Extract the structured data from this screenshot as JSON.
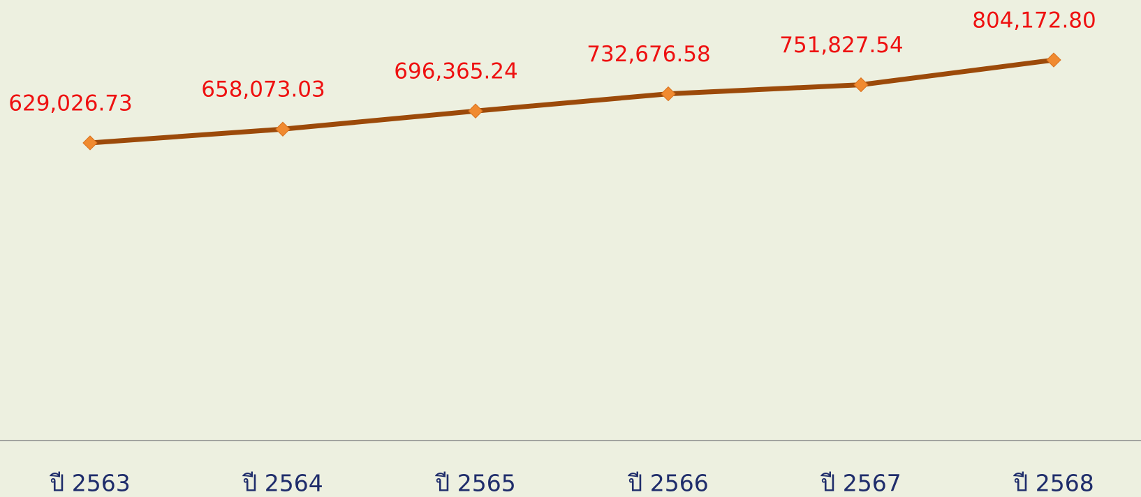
{
  "chart_data": {
    "type": "line",
    "categories": [
      "ปี 2563",
      "ปี 2564",
      "ปี 2565",
      "ปี 2566",
      "ปี 2567",
      "ปี 2568"
    ],
    "series": [
      {
        "color": "#9c4a0a",
        "marker_color": "#f08a30",
        "values": [
          629026.73,
          658073.03,
          696365.24,
          732676.58,
          751827.54,
          804172.8
        ],
        "value_labels": [
          "629,026.73",
          "658,073.03",
          "696,365.24",
          "732,676.58",
          "751,827.54",
          "804,172.80"
        ]
      }
    ],
    "ylim": [
      0,
      900000
    ]
  }
}
